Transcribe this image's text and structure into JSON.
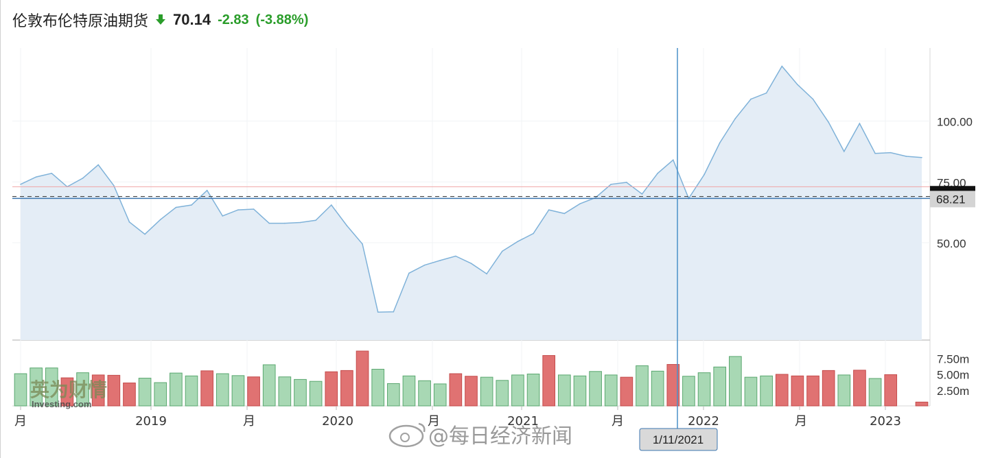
{
  "header": {
    "title": "伦敦布伦特原油期货",
    "direction_icon": "down-arrow-icon",
    "price": "70.14",
    "change": "-2.83",
    "change_pct": "(-3.88%)"
  },
  "colors": {
    "line": "#7fb2d9",
    "area": "#e4edf6",
    "vol_up": "#a8d8b4",
    "vol_down": "#e07272",
    "crosshair": "#4a90c8",
    "change_positive": "#2a9d2a"
  },
  "chart_data": {
    "type": "area",
    "dates": [
      "2018-06",
      "2018-07",
      "2018-08",
      "2018-09",
      "2018-10",
      "2018-11",
      "2018-12",
      "2019-01",
      "2019-02",
      "2019-03",
      "2019-04",
      "2019-05",
      "2019-06",
      "2019-07",
      "2019-08",
      "2019-09",
      "2019-10",
      "2019-11",
      "2019-12",
      "2020-01",
      "2020-02",
      "2020-03",
      "2020-04",
      "2020-05",
      "2020-06",
      "2020-07",
      "2020-08",
      "2020-09",
      "2020-10",
      "2020-11",
      "2020-12",
      "2021-01",
      "2021-02",
      "2021-03",
      "2021-04",
      "2021-05",
      "2021-06",
      "2021-07",
      "2021-08",
      "2021-09",
      "2021-10",
      "2021-11",
      "2021-12",
      "2022-01",
      "2022-02",
      "2022-03",
      "2022-04",
      "2022-05",
      "2022-06",
      "2022-07",
      "2022-08",
      "2022-09",
      "2022-10",
      "2022-11",
      "2022-12",
      "2023-01",
      "2023-02",
      "2023-03",
      "2023-04"
    ],
    "price": [
      74,
      77,
      78.5,
      73,
      76.5,
      82,
      73.5,
      58.5,
      53.5,
      59.5,
      64.5,
      65.5,
      71.5,
      61,
      63.5,
      63.8,
      58,
      58,
      58.3,
      59.2,
      65.5,
      57,
      49.5,
      21.5,
      21.6,
      37.5,
      40.8,
      42.7,
      44.5,
      41.5,
      37.2,
      46.5,
      50.5,
      53.8,
      63.5,
      62,
      66,
      68.5,
      74,
      74.8,
      70,
      78.5,
      84,
      68.2,
      78,
      91,
      101,
      109,
      111.5,
      122.5,
      115,
      109,
      99.5,
      87.5,
      99,
      86.7,
      87,
      85.5,
      85
    ],
    "volume_millions": [
      5.05,
      5.95,
      5.95,
      4.4,
      5.2,
      4.85,
      4.8,
      3.6,
      4.35,
      3.65,
      5.15,
      4.7,
      5.5,
      5.05,
      4.75,
      4.55,
      6.45,
      4.55,
      4.15,
      3.85,
      5.35,
      5.55,
      8.6,
      5.75,
      3.5,
      4.7,
      3.95,
      3.45,
      5.05,
      4.65,
      4.5,
      4.0,
      4.85,
      5.0,
      7.9,
      4.85,
      4.7,
      5.4,
      4.85,
      4.5,
      6.3,
      5.45,
      6.5,
      4.65,
      5.2,
      6.1,
      7.75,
      4.5,
      4.7,
      4.95,
      4.7,
      4.7,
      5.55,
      4.85,
      5.6,
      4.3,
      4.9,
      0.0,
      0.6
    ],
    "volume_up": [
      true,
      true,
      true,
      false,
      true,
      false,
      false,
      false,
      true,
      true,
      true,
      true,
      false,
      true,
      true,
      false,
      true,
      true,
      true,
      true,
      false,
      false,
      false,
      true,
      true,
      true,
      true,
      true,
      false,
      false,
      true,
      true,
      true,
      true,
      false,
      true,
      true,
      true,
      true,
      false,
      true,
      true,
      false,
      true,
      true,
      true,
      true,
      true,
      true,
      false,
      false,
      false,
      false,
      true,
      false,
      true,
      false,
      true,
      false
    ],
    "ylim": [
      10,
      130
    ],
    "vol_ylim": [
      0,
      10
    ],
    "y_ticks": [
      "50.00",
      "75.00",
      "100.00"
    ],
    "vol_ticks": [
      "2.50m",
      "5.00m",
      "7.50m"
    ],
    "x_labels": [
      "月",
      "2019",
      "月",
      "2020",
      "月",
      "2021",
      "月",
      "2022",
      "月",
      "2023"
    ],
    "reference_lines": {
      "red": 73.0,
      "dashed": 69.0,
      "blue": 68.21
    },
    "price_badges": {
      "upper": "75.00",
      "current": "68.21"
    },
    "crosshair_label": "1/11/2021",
    "grid": true
  },
  "watermarks": {
    "source": "英为财情",
    "source_sub": "Investing.com",
    "weibo": "@每日经济新闻"
  }
}
